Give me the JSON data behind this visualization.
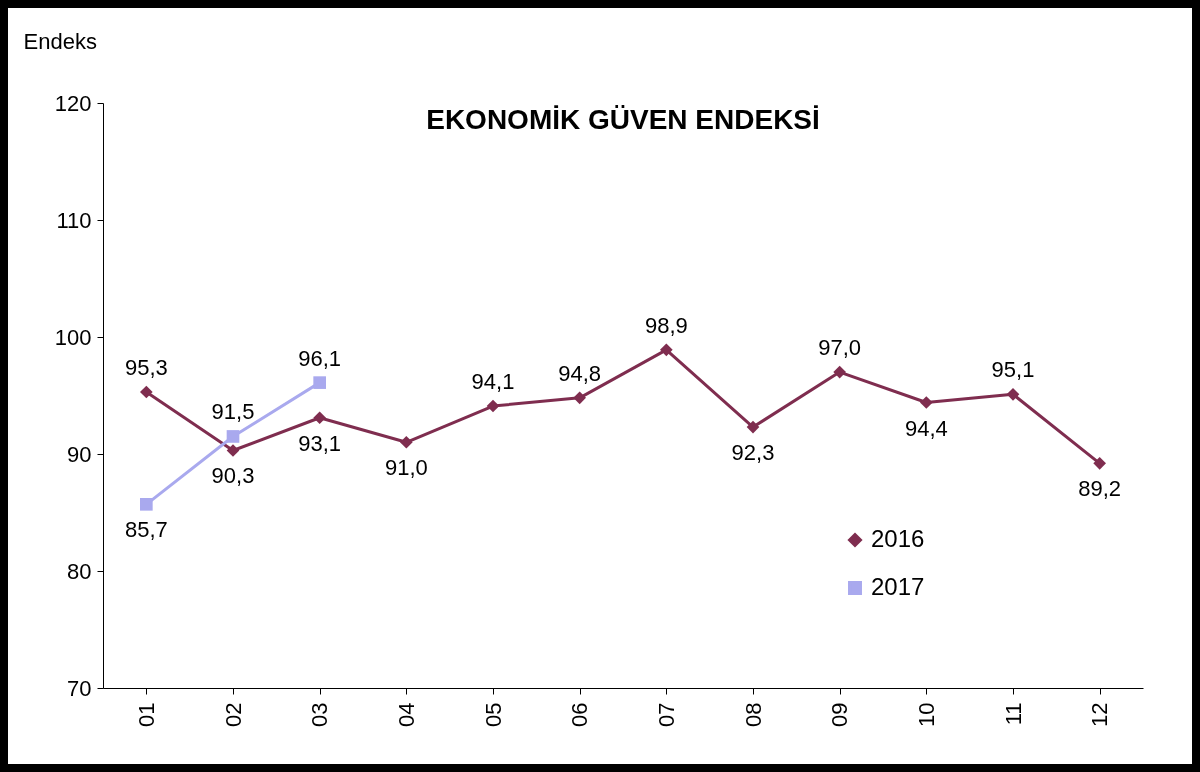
{
  "chart_data": {
    "type": "line",
    "title": "EKONOMİK GÜVEN ENDEKSİ",
    "ylabel": "Endeks",
    "categories": [
      "01",
      "02",
      "03",
      "04",
      "05",
      "06",
      "07",
      "08",
      "09",
      "10",
      "11",
      "12"
    ],
    "series": [
      {
        "name": "2016",
        "color": "#7f2d4f",
        "marker": "diamond",
        "values": [
          95.3,
          90.3,
          93.1,
          91.0,
          94.1,
          94.8,
          98.9,
          92.3,
          97.0,
          94.4,
          95.1,
          89.2
        ],
        "value_labels": [
          "95,3",
          "90,3",
          "93,1",
          "91,0",
          "94,1",
          "94,8",
          "98,9",
          "92,3",
          "97,0",
          "94,4",
          "95,1",
          "89,2"
        ]
      },
      {
        "name": "2017",
        "color": "#a9a9ee",
        "marker": "square",
        "values": [
          85.7,
          91.5,
          96.1,
          null,
          null,
          null,
          null,
          null,
          null,
          null,
          null,
          null
        ],
        "value_labels": [
          "85,7",
          "91,5",
          "96,1",
          null,
          null,
          null,
          null,
          null,
          null,
          null,
          null,
          null
        ]
      }
    ],
    "ylim": [
      70,
      120
    ],
    "yticks": [
      70,
      80,
      90,
      100,
      110,
      120
    ],
    "legend": "bottom right"
  }
}
